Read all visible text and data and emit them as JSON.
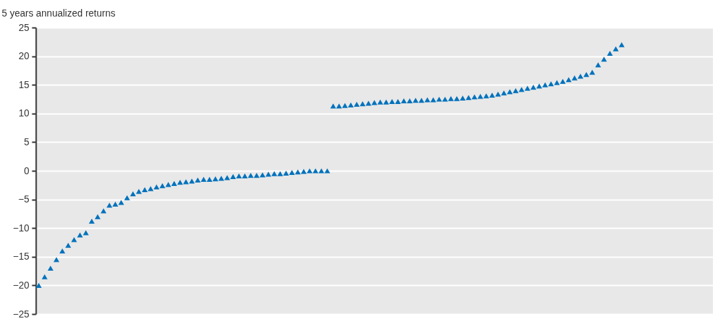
{
  "chart_data": {
    "type": "scatter",
    "ylabel": "5 years annualized returns",
    "categories": [
      null,
      null,
      null,
      null,
      null,
      null,
      null,
      null,
      null,
      null,
      null,
      null,
      null,
      null,
      null,
      null,
      null,
      null,
      null,
      null,
      null,
      null,
      null,
      null,
      null,
      null,
      null,
      null,
      null,
      null,
      null,
      null,
      null,
      null,
      null,
      null,
      null,
      null,
      null,
      null,
      null,
      null,
      null,
      null,
      null,
      null,
      null,
      null,
      null,
      null,
      null,
      null,
      null,
      null,
      null,
      null,
      null,
      null,
      null,
      null,
      null,
      null,
      null,
      null,
      null,
      null,
      null,
      null,
      null,
      null,
      null,
      null,
      null,
      null,
      null,
      null,
      null,
      null,
      null,
      null,
      null,
      null,
      null,
      null,
      null,
      null,
      null,
      null,
      null,
      null,
      null,
      null,
      null,
      null,
      null,
      null,
      null,
      null,
      null,
      null,
      null,
      null,
      null,
      null,
      null,
      null,
      null,
      null,
      null,
      null,
      null,
      null,
      null,
      null,
      null
    ],
    "series": [
      {
        "color": "#0072bc",
        "values": [
          -20,
          -18.5,
          -17,
          -15.5,
          -14,
          -13,
          -12,
          -11.2,
          -10.8,
          -8.8,
          -8,
          -7,
          -6,
          -5.8,
          -5.5,
          -4.7,
          -4,
          -3.6,
          -3.3,
          -3.1,
          -2.8,
          -2.6,
          -2.4,
          -2.2,
          -2,
          -1.9,
          -1.8,
          -1.6,
          -1.5,
          -1.5,
          -1.4,
          -1.3,
          -1.2,
          -1,
          -0.9,
          -0.9,
          -0.8,
          -0.8,
          -0.7,
          -0.6,
          -0.5,
          -0.5,
          -0.4,
          -0.3,
          -0.2,
          -0.1,
          0,
          0,
          0,
          0,
          11.3,
          11.3,
          11.4,
          11.5,
          11.6,
          11.7,
          11.8,
          11.9,
          12,
          12,
          12.1,
          12.1,
          12.2,
          12.2,
          12.3,
          12.3,
          12.4,
          12.4,
          12.5,
          12.5,
          12.6,
          12.6,
          12.7,
          12.8,
          12.9,
          13,
          13.1,
          13.2,
          13.4,
          13.6,
          13.8,
          14,
          14.2,
          14.4,
          14.6,
          14.8,
          15,
          15.2,
          15.4,
          15.6,
          15.9,
          16.2,
          16.5,
          16.8,
          17.2,
          18.5,
          19.5,
          20.5,
          21.3,
          22,
          null,
          null,
          null,
          null,
          null,
          null,
          null,
          null,
          null,
          null,
          null,
          null,
          null,
          null,
          null
        ]
      }
    ],
    "ylim": [
      -25,
      25
    ],
    "yticks": [
      -25,
      -20,
      -15,
      -10,
      -5,
      0,
      5,
      10,
      15,
      20,
      25
    ],
    "grid": "y",
    "marker": "triangle",
    "tick_labels": "y"
  }
}
